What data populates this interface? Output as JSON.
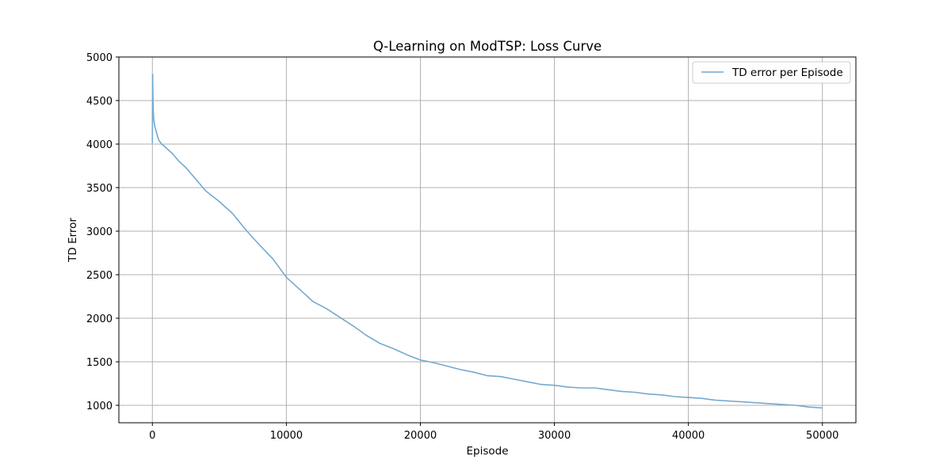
{
  "chart_data": {
    "type": "line",
    "title": "Q-Learning on ModTSP: Loss Curve",
    "xlabel": "Episode",
    "ylabel": "TD Error",
    "xlim": [
      -2500,
      52500
    ],
    "ylim": [
      800,
      5000
    ],
    "x_ticks": [
      0,
      10000,
      20000,
      30000,
      40000,
      50000
    ],
    "y_ticks": [
      1000,
      1500,
      2000,
      2500,
      3000,
      3500,
      4000,
      4500,
      5000
    ],
    "grid": true,
    "legend_position": "top-right",
    "line_color": "#74a9cf",
    "series": [
      {
        "name": "TD error per Episode",
        "x": [
          0,
          20,
          40,
          60,
          80,
          100,
          150,
          200,
          300,
          400,
          500,
          700,
          1000,
          1500,
          2000,
          2500,
          3000,
          4000,
          5000,
          6000,
          7000,
          8000,
          9000,
          10000,
          11000,
          12000,
          13000,
          14000,
          15000,
          16000,
          17000,
          18000,
          19000,
          20000,
          21000,
          22000,
          23000,
          24000,
          25000,
          26000,
          27000,
          28000,
          29000,
          30000,
          31000,
          32000,
          33000,
          34000,
          35000,
          36000,
          37000,
          38000,
          39000,
          40000,
          41000,
          42000,
          43000,
          44000,
          45000,
          46000,
          47000,
          48000,
          49000,
          50000
        ],
        "y": [
          4010,
          4800,
          4560,
          4420,
          4340,
          4290,
          4230,
          4190,
          4140,
          4080,
          4040,
          4000,
          3960,
          3890,
          3800,
          3730,
          3640,
          3460,
          3340,
          3200,
          3010,
          2840,
          2680,
          2470,
          2330,
          2190,
          2110,
          2010,
          1910,
          1800,
          1710,
          1650,
          1580,
          1520,
          1490,
          1450,
          1410,
          1380,
          1340,
          1330,
          1300,
          1270,
          1240,
          1230,
          1210,
          1200,
          1200,
          1180,
          1160,
          1150,
          1130,
          1120,
          1100,
          1090,
          1080,
          1060,
          1050,
          1040,
          1030,
          1020,
          1010,
          1000,
          980,
          970
        ]
      }
    ]
  }
}
